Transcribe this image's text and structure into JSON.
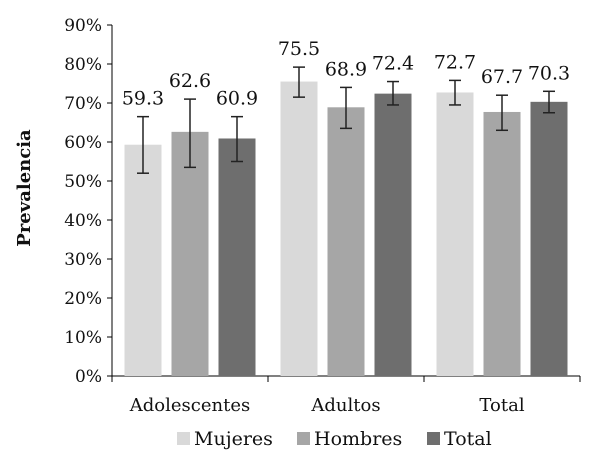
{
  "chart_data": {
    "type": "bar",
    "ylabel": "Prevalencia",
    "xlabel": "",
    "title": "",
    "ylim": [
      0,
      90
    ],
    "y_ticks": [
      "0%",
      "10%",
      "20%",
      "30%",
      "40%",
      "50%",
      "60%",
      "70%",
      "80%",
      "90%"
    ],
    "y_tick_values": [
      0,
      10,
      20,
      30,
      40,
      50,
      60,
      70,
      80,
      90
    ],
    "categories": [
      "Adolescentes",
      "Adultos",
      "Total"
    ],
    "series": [
      {
        "name": "Mujeres",
        "color": "#d9d9d9",
        "values": [
          59.3,
          75.5,
          72.7
        ],
        "labels": [
          "59.3",
          "75.5",
          "72.7"
        ],
        "error_low": [
          52.0,
          71.5,
          69.5
        ],
        "error_high": [
          66.5,
          79.2,
          75.8
        ]
      },
      {
        "name": "Hombres",
        "color": "#a6a6a6",
        "values": [
          62.6,
          68.9,
          67.7
        ],
        "labels": [
          "62.6",
          "68.9",
          "67.7"
        ],
        "error_low": [
          53.5,
          63.5,
          63.0
        ],
        "error_high": [
          71.0,
          74.0,
          72.0
        ]
      },
      {
        "name": "Total",
        "color": "#6e6e6e",
        "values": [
          60.9,
          72.4,
          70.3
        ],
        "labels": [
          "60.9",
          "72.4",
          "70.3"
        ],
        "error_low": [
          55.0,
          69.5,
          67.5
        ],
        "error_high": [
          66.5,
          75.5,
          73.0
        ]
      }
    ],
    "grid": false,
    "legend_position": "bottom"
  }
}
